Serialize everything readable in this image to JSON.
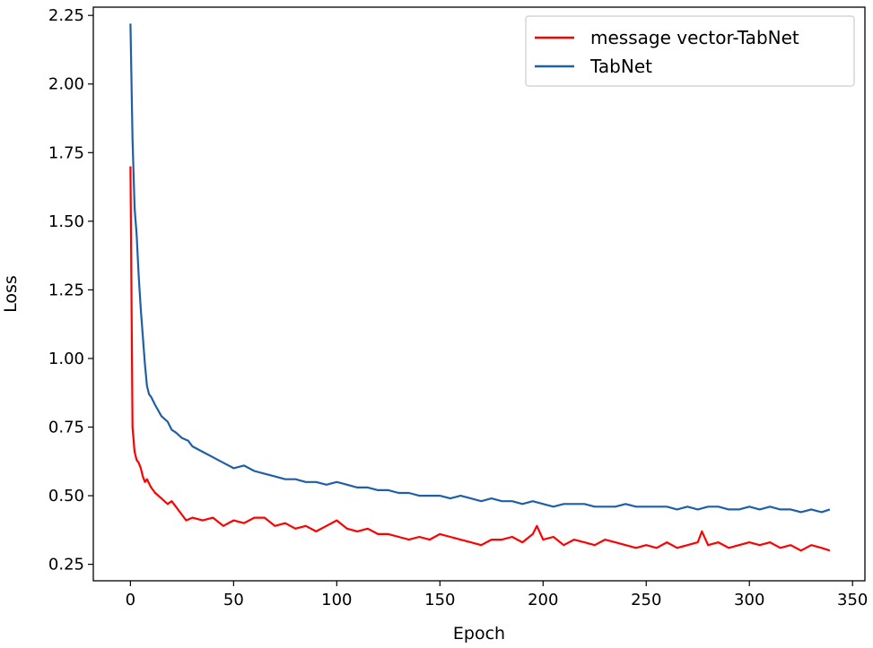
{
  "chart_data": {
    "type": "line",
    "title": "",
    "xlabel": "Epoch",
    "ylabel": "Loss",
    "xlim": [
      -18,
      356
    ],
    "ylim": [
      0.19,
      2.28
    ],
    "xticks": [
      0,
      50,
      100,
      150,
      200,
      250,
      300,
      350
    ],
    "yticks": [
      0.25,
      0.5,
      0.75,
      1.0,
      1.25,
      1.5,
      1.75,
      2.0,
      2.25
    ],
    "xtick_labels": [
      "0",
      "50",
      "100",
      "150",
      "200",
      "250",
      "300",
      "350"
    ],
    "ytick_labels": [
      "0.25",
      "0.50",
      "0.75",
      "1.00",
      "1.25",
      "1.50",
      "1.75",
      "2.00",
      "2.25"
    ],
    "grid": false,
    "legend_position": "top-right",
    "series": [
      {
        "name": "message vector-TabNet",
        "color": "#ff0000",
        "x": [
          0,
          1,
          2,
          3,
          4,
          5,
          6,
          7,
          8,
          10,
          12,
          15,
          18,
          20,
          22,
          25,
          27,
          30,
          35,
          40,
          45,
          50,
          55,
          60,
          65,
          70,
          75,
          80,
          85,
          90,
          95,
          100,
          105,
          110,
          115,
          120,
          125,
          130,
          135,
          140,
          145,
          150,
          155,
          160,
          165,
          170,
          175,
          180,
          185,
          190,
          195,
          197,
          200,
          205,
          210,
          215,
          220,
          225,
          230,
          235,
          240,
          245,
          250,
          255,
          260,
          265,
          270,
          275,
          277,
          280,
          285,
          290,
          295,
          300,
          305,
          310,
          315,
          320,
          325,
          330,
          335,
          339
        ],
        "y": [
          1.7,
          0.75,
          0.66,
          0.63,
          0.62,
          0.6,
          0.57,
          0.55,
          0.56,
          0.53,
          0.51,
          0.49,
          0.47,
          0.48,
          0.46,
          0.43,
          0.41,
          0.42,
          0.41,
          0.42,
          0.39,
          0.41,
          0.4,
          0.42,
          0.42,
          0.39,
          0.4,
          0.38,
          0.39,
          0.37,
          0.39,
          0.41,
          0.38,
          0.37,
          0.38,
          0.36,
          0.36,
          0.35,
          0.34,
          0.35,
          0.34,
          0.36,
          0.35,
          0.34,
          0.33,
          0.32,
          0.34,
          0.34,
          0.35,
          0.33,
          0.36,
          0.39,
          0.34,
          0.35,
          0.32,
          0.34,
          0.33,
          0.32,
          0.34,
          0.33,
          0.32,
          0.31,
          0.32,
          0.31,
          0.33,
          0.31,
          0.32,
          0.33,
          0.37,
          0.32,
          0.33,
          0.31,
          0.32,
          0.33,
          0.32,
          0.33,
          0.31,
          0.32,
          0.3,
          0.32,
          0.31,
          0.3
        ]
      },
      {
        "name": "TabNet",
        "color": "#1f5fa8",
        "x": [
          0,
          1,
          2,
          3,
          4,
          5,
          6,
          7,
          8,
          9,
          10,
          12,
          15,
          18,
          20,
          22,
          25,
          28,
          30,
          35,
          40,
          45,
          50,
          55,
          60,
          65,
          70,
          75,
          80,
          85,
          90,
          95,
          100,
          105,
          110,
          115,
          120,
          125,
          130,
          135,
          140,
          145,
          150,
          155,
          160,
          165,
          170,
          175,
          180,
          185,
          190,
          195,
          200,
          205,
          210,
          215,
          220,
          225,
          230,
          235,
          240,
          245,
          250,
          255,
          260,
          265,
          270,
          275,
          280,
          285,
          290,
          295,
          300,
          305,
          310,
          315,
          320,
          325,
          330,
          335,
          339
        ],
        "y": [
          2.22,
          1.8,
          1.55,
          1.45,
          1.3,
          1.18,
          1.08,
          0.98,
          0.9,
          0.87,
          0.86,
          0.83,
          0.79,
          0.77,
          0.74,
          0.73,
          0.71,
          0.7,
          0.68,
          0.66,
          0.64,
          0.62,
          0.6,
          0.61,
          0.59,
          0.58,
          0.57,
          0.56,
          0.56,
          0.55,
          0.55,
          0.54,
          0.55,
          0.54,
          0.53,
          0.53,
          0.52,
          0.52,
          0.51,
          0.51,
          0.5,
          0.5,
          0.5,
          0.49,
          0.5,
          0.49,
          0.48,
          0.49,
          0.48,
          0.48,
          0.47,
          0.48,
          0.47,
          0.46,
          0.47,
          0.47,
          0.47,
          0.46,
          0.46,
          0.46,
          0.47,
          0.46,
          0.46,
          0.46,
          0.46,
          0.45,
          0.46,
          0.45,
          0.46,
          0.46,
          0.45,
          0.45,
          0.46,
          0.45,
          0.46,
          0.45,
          0.45,
          0.44,
          0.45,
          0.44,
          0.45
        ]
      }
    ]
  }
}
